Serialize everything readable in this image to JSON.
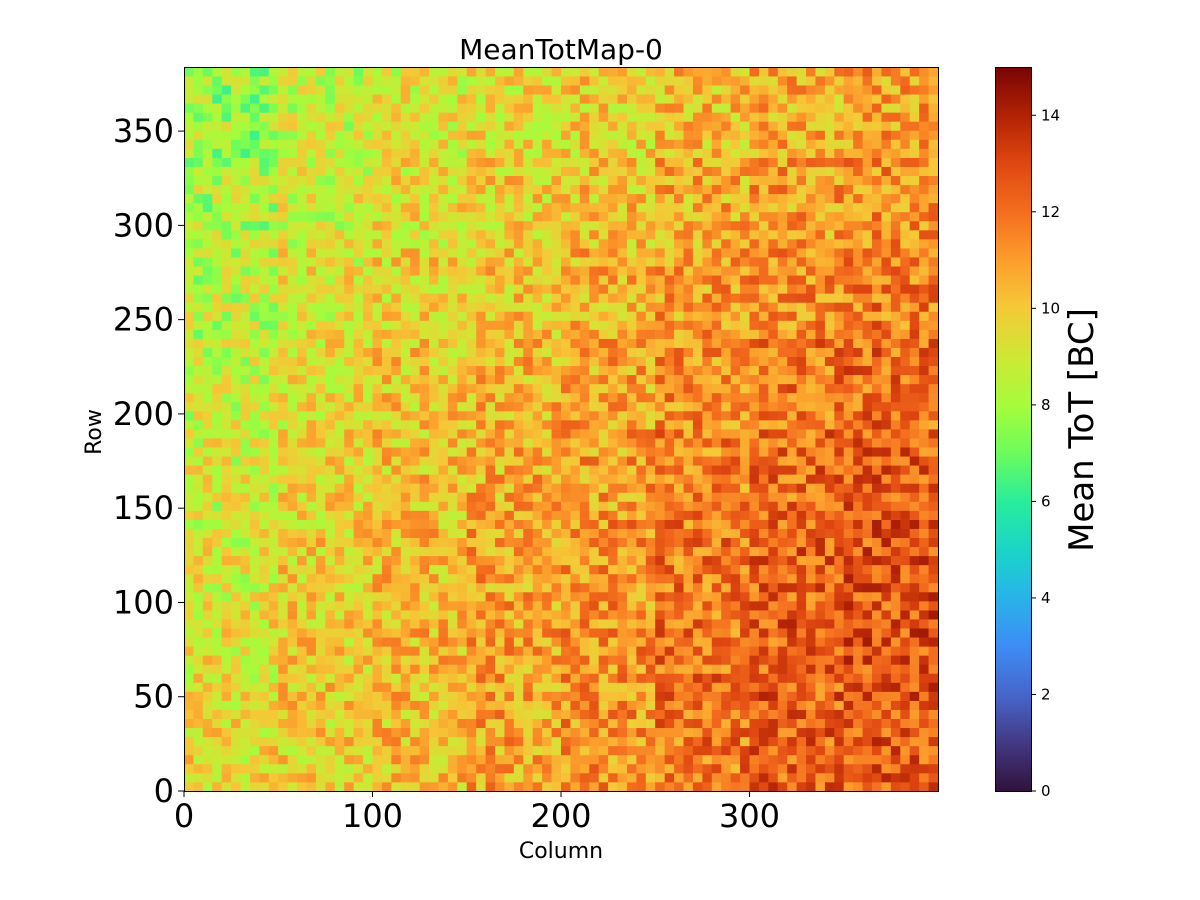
{
  "chart_data": {
    "type": "heatmap",
    "title": "MeanTotMap-0",
    "xlabel": "Column",
    "ylabel": "Row",
    "xlim": [
      0,
      400
    ],
    "ylim": [
      0,
      384
    ],
    "x_ticks": [
      0,
      100,
      200,
      300
    ],
    "y_ticks": [
      0,
      50,
      100,
      150,
      200,
      250,
      300,
      350
    ],
    "colorbar": {
      "label": "Mean ToT [BC]",
      "colormap": "turbo",
      "range": [
        0,
        15
      ],
      "ticks": [
        0,
        2,
        4,
        6,
        8,
        10,
        12,
        14
      ]
    },
    "grid": false,
    "summary_grid": {
      "x_edges": [
        0,
        50,
        100,
        150,
        200,
        250,
        300,
        350,
        400
      ],
      "y_edges": [
        0,
        48,
        96,
        144,
        192,
        240,
        288,
        336,
        384
      ],
      "values": [
        [
          9.5,
          9.8,
          10.2,
          10.8,
          11.2,
          11.8,
          12.3,
          12.6
        ],
        [
          9.3,
          9.9,
          10.4,
          10.9,
          11.3,
          11.9,
          12.4,
          12.7
        ],
        [
          9.1,
          9.8,
          10.3,
          10.8,
          11.2,
          11.8,
          12.3,
          12.6
        ],
        [
          8.9,
          9.6,
          10.1,
          10.6,
          11.0,
          11.6,
          12.1,
          12.4
        ],
        [
          8.7,
          9.4,
          9.9,
          10.4,
          10.8,
          11.3,
          11.8,
          12.1
        ],
        [
          8.5,
          9.2,
          9.7,
          10.1,
          10.5,
          11.0,
          11.4,
          11.7
        ],
        [
          8.2,
          8.9,
          9.4,
          9.8,
          10.1,
          10.6,
          11.0,
          11.3
        ],
        [
          7.9,
          8.6,
          9.1,
          9.5,
          9.8,
          10.2,
          10.6,
          10.9
        ]
      ]
    }
  }
}
